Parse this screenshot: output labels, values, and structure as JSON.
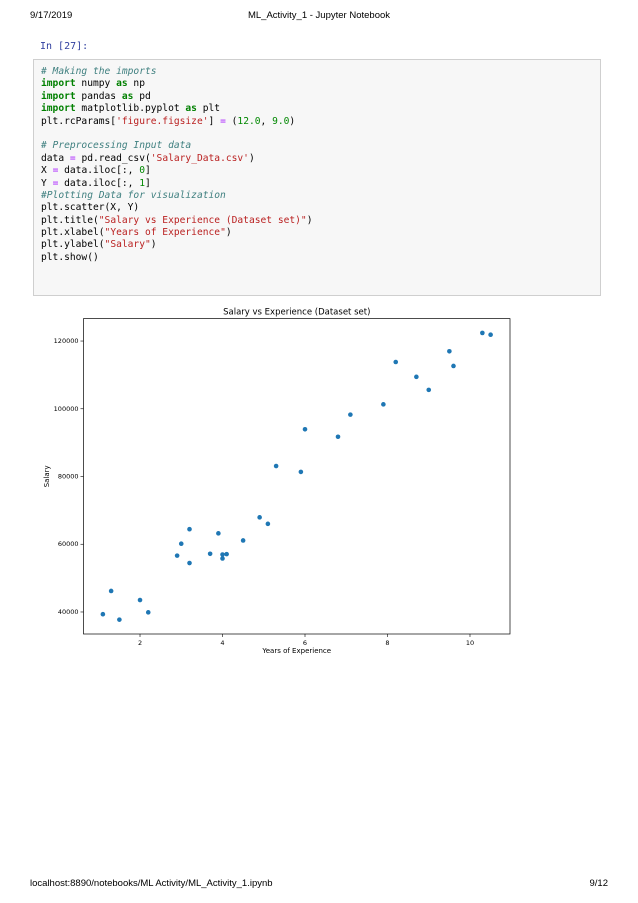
{
  "header": {
    "date": "9/17/2019",
    "title": "ML_Activity_1 - Jupyter Notebook"
  },
  "footer": {
    "url": "localhost:8890/notebooks/ML Activity/ML_Activity_1.ipynb",
    "page": "9/12"
  },
  "cell": {
    "prompt": "In [27]:",
    "code_blocks": [
      [
        "# Making the imports",
        "import numpy as np",
        "import pandas as pd",
        "import matplotlib.pyplot as plt",
        "plt.rcParams['figure.figsize'] = (12.0, 9.0)"
      ],
      [
        "# Preprocessing Input data",
        "data = pd.read_csv('Salary_Data.csv')",
        "X = data.iloc[:, 0]",
        "Y = data.iloc[:, 1]",
        "#Plotting Data for visualization",
        "plt.scatter(X, Y)",
        "plt.title(\"Salary vs Experience (Dataset set)\")",
        "plt.xlabel(\"Years of Experience\")",
        "plt.ylabel(\"Salary\")",
        "plt.show()"
      ]
    ]
  },
  "chart_data": {
    "type": "scatter",
    "title": "Salary vs Experience (Dataset set)",
    "x_label": "Years of Experience",
    "y_label": "Salary",
    "color": "#1f77b4",
    "x": [
      1.1,
      1.3,
      1.5,
      2.0,
      2.2,
      2.9,
      3.0,
      3.2,
      3.2,
      3.7,
      3.9,
      4.0,
      4.0,
      4.1,
      4.5,
      4.9,
      5.1,
      5.3,
      5.9,
      6.0,
      6.8,
      7.1,
      7.9,
      8.2,
      8.7,
      9.0,
      9.5,
      9.6,
      10.3,
      10.5
    ],
    "values": [
      39343,
      46205,
      37731,
      43525,
      39891,
      56642,
      60150,
      54445,
      64445,
      57189,
      63218,
      55794,
      56957,
      57081,
      61111,
      67938,
      66029,
      83088,
      81363,
      93940,
      91738,
      98273,
      101302,
      113812,
      109431,
      105582,
      116969,
      112635,
      122391,
      121872
    ],
    "xlim": [
      0.63,
      10.97
    ],
    "ylim": [
      33498,
      126624
    ],
    "xticks": [
      2,
      4,
      6,
      8,
      10
    ],
    "yticks": [
      40000,
      60000,
      80000,
      100000,
      120000
    ],
    "grid": false
  }
}
